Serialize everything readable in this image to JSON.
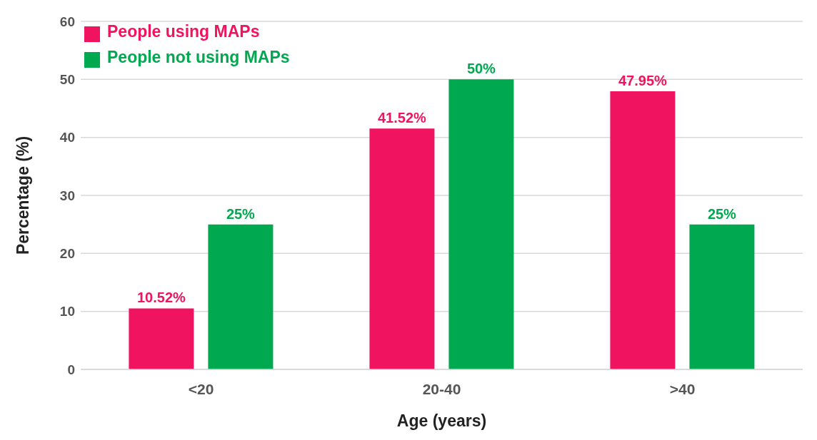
{
  "chart_data": {
    "type": "bar",
    "xlabel": "Age (years)",
    "ylabel": "Percentage (%)",
    "categories": [
      "<20",
      "20-40",
      ">40"
    ],
    "series": [
      {
        "name": "People using MAPs",
        "color": "#f0135f",
        "values": [
          10.52,
          41.52,
          47.95
        ],
        "value_labels": [
          "10.52%",
          "41.52%",
          "47.95%"
        ]
      },
      {
        "name": "People not using MAPs",
        "color": "#00a84f",
        "values": [
          25,
          50,
          25
        ],
        "value_labels": [
          "25%",
          "50%",
          "25%"
        ]
      }
    ],
    "ylim": [
      0,
      60
    ],
    "yticks": [
      0,
      10,
      20,
      30,
      40,
      50,
      60
    ],
    "grid": "y",
    "legend": "top left"
  }
}
